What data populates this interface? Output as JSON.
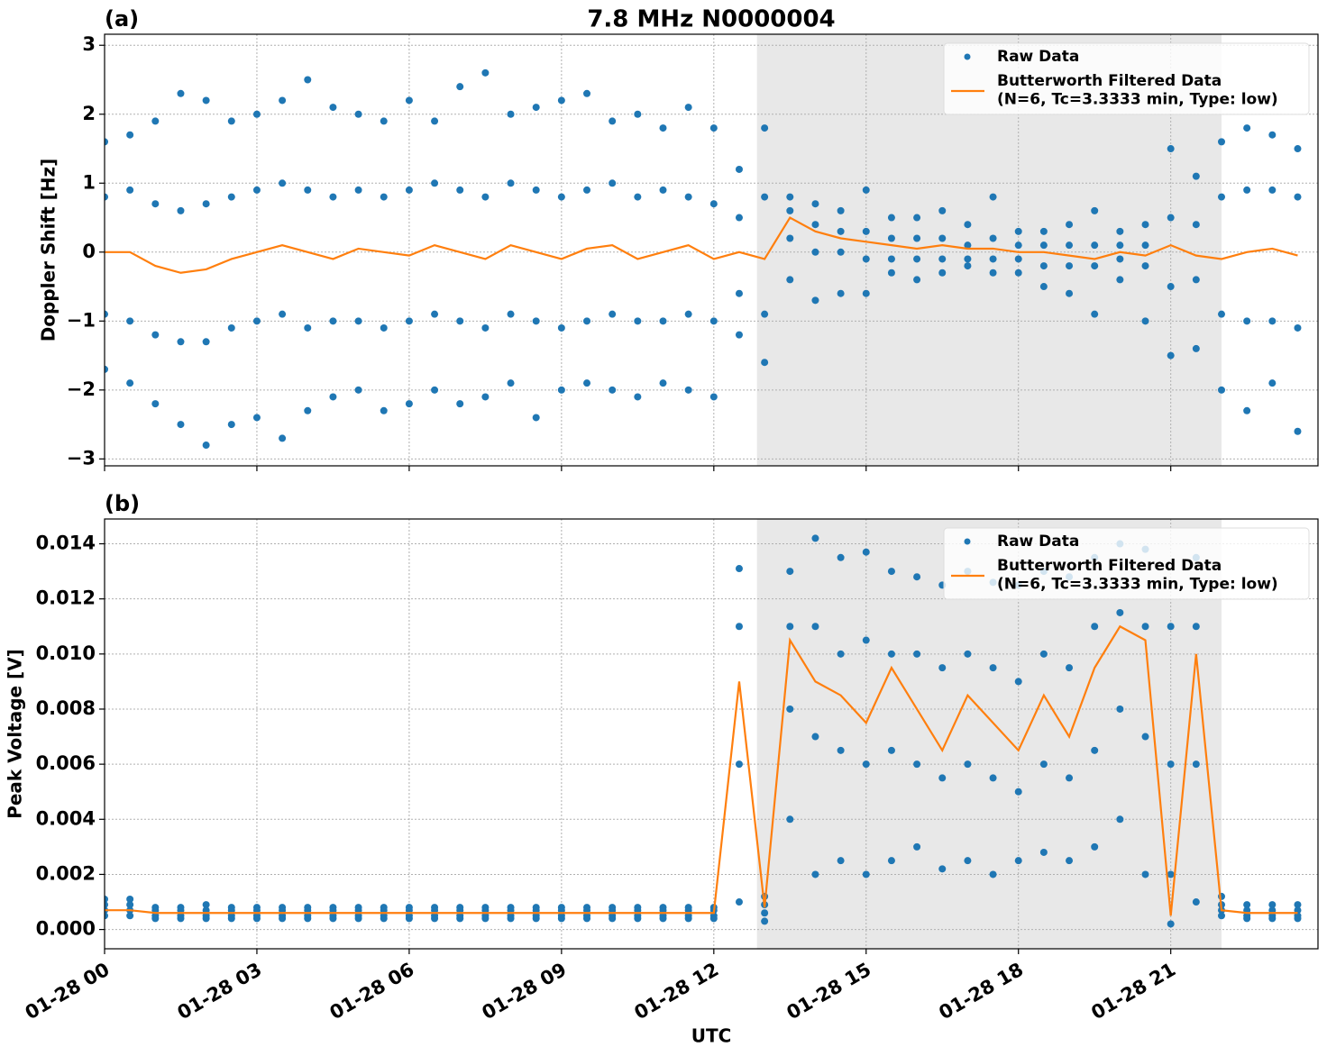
{
  "chart_data": [
    {
      "type": "scatter",
      "title": "7.8 MHz N0000004",
      "label": "(a)",
      "ylabel": "Doppler Shift [Hz]",
      "xlim": [
        0,
        23.9
      ],
      "ylim": [
        -3.1,
        3.16
      ],
      "xticks": [
        0,
        3,
        6,
        9,
        12,
        15,
        18,
        21
      ],
      "yticks": [
        {
          "value": -3,
          "label": "−3"
        },
        {
          "value": -2,
          "label": "−2"
        },
        {
          "value": -1,
          "label": "−1"
        },
        0,
        1,
        2,
        3
      ],
      "grid": true,
      "legend": "upper right",
      "span": [
        12.85,
        22.0
      ],
      "span_color": "#e8e8e8",
      "series": [
        {
          "name": "Raw Data",
          "mode": "markers",
          "color": "#1f77b4",
          "x": [
            0,
            0,
            0,
            0,
            0.5,
            0.5,
            0.5,
            0.5,
            1,
            1,
            1,
            1,
            1.5,
            1.5,
            1.5,
            1.5,
            2,
            2,
            2,
            2,
            2.5,
            2.5,
            2.5,
            2.5,
            3,
            3,
            3,
            3,
            3.5,
            3.5,
            3.5,
            3.5,
            4,
            4,
            4,
            4,
            4.5,
            4.5,
            4.5,
            4.5,
            5,
            5,
            5,
            5,
            5.5,
            5.5,
            5.5,
            5.5,
            6,
            6,
            6,
            6,
            6.5,
            6.5,
            6.5,
            6.5,
            7,
            7,
            7,
            7,
            7.5,
            7.5,
            7.5,
            7.5,
            8,
            8,
            8,
            8,
            8.5,
            8.5,
            8.5,
            8.5,
            9,
            9,
            9,
            9,
            9.5,
            9.5,
            9.5,
            9.5,
            10,
            10,
            10,
            10,
            10.5,
            10.5,
            10.5,
            10.5,
            11,
            11,
            11,
            11,
            11.5,
            11.5,
            11.5,
            11.5,
            12,
            12,
            12,
            12,
            12.5,
            12.5,
            12.5,
            12.5,
            13,
            13,
            13,
            13,
            13.5,
            13.5,
            13.5,
            13.5,
            14,
            14,
            14,
            14,
            14.5,
            14.5,
            14.5,
            14.5,
            15,
            15,
            15,
            15,
            15.5,
            15.5,
            15.5,
            15.5,
            16,
            16,
            16,
            16,
            16.5,
            16.5,
            16.5,
            16.5,
            17,
            17,
            17,
            17,
            17.5,
            17.5,
            17.5,
            17.5,
            18,
            18,
            18,
            18,
            18.5,
            18.5,
            18.5,
            18.5,
            19,
            19,
            19,
            19,
            19.5,
            19.5,
            19.5,
            19.5,
            20,
            20,
            20,
            20,
            20.5,
            20.5,
            20.5,
            20.5,
            21,
            21,
            21,
            21,
            21.5,
            21.5,
            21.5,
            21.5,
            22,
            22,
            22,
            22,
            22.5,
            22.5,
            22.5,
            22.5,
            23,
            23,
            23,
            23,
            23.5,
            23.5,
            23.5,
            23.5
          ],
          "values": [
            1.6,
            0.8,
            -0.9,
            -1.7,
            1.7,
            0.9,
            -1.0,
            -1.9,
            1.9,
            0.7,
            -1.2,
            -2.2,
            2.3,
            0.6,
            -1.3,
            -2.5,
            2.2,
            0.7,
            -1.3,
            -2.8,
            1.9,
            0.8,
            -1.1,
            -2.5,
            2.0,
            0.9,
            -1.0,
            -2.4,
            2.2,
            1.0,
            -0.9,
            -2.7,
            2.5,
            0.9,
            -1.1,
            -2.3,
            2.1,
            0.8,
            -1.0,
            -2.1,
            2.0,
            0.9,
            -1.0,
            -2.0,
            1.9,
            0.8,
            -1.1,
            -2.3,
            2.2,
            0.9,
            -1.0,
            -2.2,
            1.9,
            1.0,
            -0.9,
            -2.0,
            2.4,
            0.9,
            -1.0,
            -2.2,
            2.6,
            0.8,
            -1.1,
            -2.1,
            2.0,
            1.0,
            -0.9,
            -1.9,
            2.1,
            0.9,
            -1.0,
            -2.4,
            2.2,
            0.8,
            -1.1,
            -2.0,
            2.3,
            0.9,
            -1.0,
            -1.9,
            1.9,
            1.0,
            -0.9,
            -2.0,
            2.0,
            0.8,
            -1.0,
            -2.1,
            1.8,
            0.9,
            -1.0,
            -1.9,
            2.1,
            0.8,
            -0.9,
            -2.0,
            1.8,
            0.7,
            -1.0,
            -2.1,
            1.2,
            0.5,
            -0.6,
            -1.2,
            1.8,
            0.8,
            -0.9,
            -1.6,
            0.8,
            0.6,
            0.2,
            -0.4,
            0.7,
            0.4,
            0.0,
            -0.7,
            0.6,
            0.3,
            0.0,
            -0.6,
            0.9,
            0.3,
            -0.1,
            -0.6,
            0.5,
            0.2,
            -0.1,
            -0.3,
            0.5,
            0.2,
            -0.1,
            -0.4,
            0.6,
            0.2,
            -0.1,
            -0.3,
            0.4,
            0.1,
            -0.1,
            -0.2,
            0.8,
            0.2,
            -0.1,
            -0.3,
            0.3,
            0.1,
            -0.1,
            -0.3,
            0.3,
            0.1,
            -0.2,
            -0.5,
            0.4,
            0.1,
            -0.2,
            -0.6,
            0.6,
            0.1,
            -0.2,
            -0.9,
            0.3,
            0.1,
            -0.1,
            -0.4,
            0.4,
            0.1,
            -0.2,
            -1.0,
            1.5,
            0.5,
            -0.5,
            -1.5,
            1.1,
            0.4,
            -0.4,
            -1.4,
            1.6,
            0.8,
            -0.9,
            -2.0,
            1.8,
            0.9,
            -1.0,
            -2.3,
            1.7,
            0.9,
            -1.0,
            -1.9,
            1.5,
            0.8,
            -1.1,
            -2.6
          ]
        },
        {
          "name": "Butterworth Filtered Data\n(N=6, Tc=3.3333 min, Type: low)",
          "mode": "lines",
          "color": "#ff7f0e",
          "x": [
            0,
            0.5,
            1,
            1.5,
            2,
            2.5,
            3,
            3.5,
            4,
            4.5,
            5,
            5.5,
            6,
            6.5,
            7,
            7.5,
            8,
            8.5,
            9,
            9.5,
            10,
            10.5,
            11,
            11.5,
            12,
            12.5,
            13,
            13.5,
            14,
            14.5,
            15,
            15.5,
            16,
            16.5,
            17,
            17.5,
            18,
            18.5,
            19,
            19.5,
            20,
            20.5,
            21,
            21.5,
            22,
            22.5,
            23,
            23.5
          ],
          "values": [
            0,
            0.0,
            -0.2,
            -0.3,
            -0.25,
            -0.1,
            0,
            0.1,
            0,
            -0.1,
            0.05,
            0,
            -0.05,
            0.1,
            0,
            -0.1,
            0.1,
            0.0,
            -0.1,
            0.05,
            0.1,
            -0.1,
            0.0,
            0.1,
            -0.1,
            0.0,
            -0.1,
            0.5,
            0.3,
            0.2,
            0.15,
            0.1,
            0.05,
            0.1,
            0.05,
            0.05,
            0.0,
            0.0,
            -0.05,
            -0.1,
            0.0,
            -0.05,
            0.1,
            -0.05,
            -0.1,
            0.0,
            0.05,
            -0.05
          ]
        }
      ]
    },
    {
      "type": "scatter",
      "label": "(b)",
      "ylabel": "Peak Voltage [V]",
      "xlabel": "UTC",
      "xlim": [
        0,
        23.9
      ],
      "ylim": [
        -0.0007,
        0.0149
      ],
      "xticks": [
        {
          "value": 0,
          "label": "01-28 00"
        },
        {
          "value": 3,
          "label": "01-28 03"
        },
        {
          "value": 6,
          "label": "01-28 06"
        },
        {
          "value": 9,
          "label": "01-28 09"
        },
        {
          "value": 12,
          "label": "01-28 12"
        },
        {
          "value": 15,
          "label": "01-28 15"
        },
        {
          "value": 18,
          "label": "01-28 18"
        },
        {
          "value": 21,
          "label": "01-28 21"
        }
      ],
      "yticks": [
        {
          "value": 0,
          "label": "0.000"
        },
        0.002,
        0.004,
        0.006,
        0.008,
        {
          "value": 0.01,
          "label": "0.010"
        },
        0.012,
        0.014
      ],
      "grid": true,
      "legend": "upper right",
      "span": [
        12.85,
        22.0
      ],
      "span_color": "#e8e8e8",
      "series": [
        {
          "name": "Raw Data",
          "mode": "markers",
          "color": "#1f77b4",
          "x": [
            0,
            0,
            0,
            0,
            0.5,
            0.5,
            0.5,
            0.5,
            1,
            1,
            1,
            1,
            1.5,
            1.5,
            1.5,
            1.5,
            2,
            2,
            2,
            2,
            2.5,
            2.5,
            2.5,
            2.5,
            3,
            3,
            3,
            3,
            3.5,
            3.5,
            3.5,
            3.5,
            4,
            4,
            4,
            4,
            4.5,
            4.5,
            4.5,
            4.5,
            5,
            5,
            5,
            5,
            5.5,
            5.5,
            5.5,
            5.5,
            6,
            6,
            6,
            6,
            6.5,
            6.5,
            6.5,
            6.5,
            7,
            7,
            7,
            7,
            7.5,
            7.5,
            7.5,
            7.5,
            8,
            8,
            8,
            8,
            8.5,
            8.5,
            8.5,
            8.5,
            9,
            9,
            9,
            9,
            9.5,
            9.5,
            9.5,
            9.5,
            10,
            10,
            10,
            10,
            10.5,
            10.5,
            10.5,
            10.5,
            11,
            11,
            11,
            11,
            11.5,
            11.5,
            11.5,
            11.5,
            12,
            12,
            12,
            12,
            12.5,
            12.5,
            12.5,
            12.5,
            13,
            13,
            13,
            13,
            13.5,
            13.5,
            13.5,
            13.5,
            14,
            14,
            14,
            14,
            14.5,
            14.5,
            14.5,
            14.5,
            15,
            15,
            15,
            15,
            15.5,
            15.5,
            15.5,
            15.5,
            16,
            16,
            16,
            16,
            16.5,
            16.5,
            16.5,
            16.5,
            17,
            17,
            17,
            17,
            17.5,
            17.5,
            17.5,
            17.5,
            18,
            18,
            18,
            18,
            18.5,
            18.5,
            18.5,
            18.5,
            19,
            19,
            19,
            19,
            19.5,
            19.5,
            19.5,
            19.5,
            20,
            20,
            20,
            20,
            20.5,
            20.5,
            20.5,
            20.5,
            21,
            21,
            21,
            21,
            21.5,
            21.5,
            21.5,
            21.5,
            22,
            22,
            22,
            22,
            22.5,
            22.5,
            22.5,
            22.5,
            23,
            23,
            23,
            23,
            23.5,
            23.5,
            23.5,
            23.5
          ],
          "values": [
            0.0011,
            0.0009,
            0.0007,
            0.0005,
            0.0011,
            0.0009,
            0.0007,
            0.0005,
            0.0008,
            0.0007,
            0.0005,
            0.0004,
            0.0008,
            0.0007,
            0.0005,
            0.0004,
            0.0009,
            0.0007,
            0.0005,
            0.0004,
            0.0008,
            0.0007,
            0.0005,
            0.0004,
            0.0008,
            0.0007,
            0.0005,
            0.0004,
            0.0008,
            0.0007,
            0.0005,
            0.0004,
            0.0008,
            0.0007,
            0.0005,
            0.0004,
            0.0008,
            0.0007,
            0.0005,
            0.0004,
            0.0008,
            0.0007,
            0.0005,
            0.0004,
            0.0008,
            0.0007,
            0.0005,
            0.0004,
            0.0008,
            0.0007,
            0.0005,
            0.0004,
            0.0008,
            0.0007,
            0.0005,
            0.0004,
            0.0008,
            0.0007,
            0.0005,
            0.0004,
            0.0008,
            0.0007,
            0.0005,
            0.0004,
            0.0008,
            0.0007,
            0.0005,
            0.0004,
            0.0008,
            0.0007,
            0.0005,
            0.0004,
            0.0008,
            0.0007,
            0.0005,
            0.0004,
            0.0008,
            0.0007,
            0.0005,
            0.0004,
            0.0008,
            0.0007,
            0.0005,
            0.0004,
            0.0008,
            0.0007,
            0.0005,
            0.0004,
            0.0008,
            0.0007,
            0.0005,
            0.0004,
            0.0008,
            0.0007,
            0.0005,
            0.0004,
            0.0008,
            0.0007,
            0.0005,
            0.0004,
            0.0131,
            0.011,
            0.006,
            0.001,
            0.0012,
            0.0009,
            0.0006,
            0.0003,
            0.013,
            0.011,
            0.008,
            0.004,
            0.0142,
            0.011,
            0.007,
            0.002,
            0.0135,
            0.01,
            0.0065,
            0.0025,
            0.0137,
            0.0105,
            0.006,
            0.002,
            0.013,
            0.01,
            0.0065,
            0.0025,
            0.0128,
            0.01,
            0.006,
            0.003,
            0.0125,
            0.0095,
            0.0055,
            0.0022,
            0.013,
            0.01,
            0.006,
            0.0025,
            0.0126,
            0.0095,
            0.0055,
            0.002,
            0.0125,
            0.009,
            0.005,
            0.0025,
            0.013,
            0.01,
            0.006,
            0.0028,
            0.0128,
            0.0095,
            0.0055,
            0.0025,
            0.0135,
            0.011,
            0.0065,
            0.003,
            0.014,
            0.0115,
            0.008,
            0.004,
            0.0138,
            0.011,
            0.007,
            0.002,
            0.011,
            0.006,
            0.002,
            0.0002,
            0.0135,
            0.011,
            0.006,
            0.001,
            0.0012,
            0.0009,
            0.0007,
            0.0005,
            0.0009,
            0.0007,
            0.0005,
            0.0004,
            0.0009,
            0.0007,
            0.0005,
            0.0004,
            0.0009,
            0.0007,
            0.0005,
            0.0004
          ]
        },
        {
          "name": "Butterworth Filtered Data\n(N=6, Tc=3.3333 min, Type: low)",
          "mode": "lines",
          "color": "#ff7f0e",
          "x": [
            0,
            0.5,
            1,
            1.5,
            2,
            2.5,
            3,
            3.5,
            4,
            4.5,
            5,
            5.5,
            6,
            6.5,
            7,
            7.5,
            8,
            8.5,
            9,
            9.5,
            10,
            10.5,
            11,
            11.5,
            12,
            12.5,
            13,
            13.5,
            14,
            14.5,
            15,
            15.5,
            16,
            16.5,
            17,
            17.5,
            18,
            18.5,
            19,
            19.5,
            20,
            20.5,
            21,
            21.5,
            22,
            22.5,
            23,
            23.5
          ],
          "values": [
            0.0007,
            0.0007,
            0.0006,
            0.0006,
            0.0006,
            0.0006,
            0.0006,
            0.0006,
            0.0006,
            0.0006,
            0.0006,
            0.0006,
            0.0006,
            0.0006,
            0.0006,
            0.0006,
            0.0006,
            0.0006,
            0.0006,
            0.0006,
            0.0006,
            0.0006,
            0.0006,
            0.0006,
            0.0006,
            0.009,
            0.0008,
            0.0105,
            0.009,
            0.0085,
            0.0075,
            0.0095,
            0.008,
            0.0065,
            0.0085,
            0.0075,
            0.0065,
            0.0085,
            0.007,
            0.0095,
            0.011,
            0.0105,
            0.0005,
            0.01,
            0.0007,
            0.0006,
            0.0006,
            0.0006
          ]
        }
      ]
    }
  ]
}
